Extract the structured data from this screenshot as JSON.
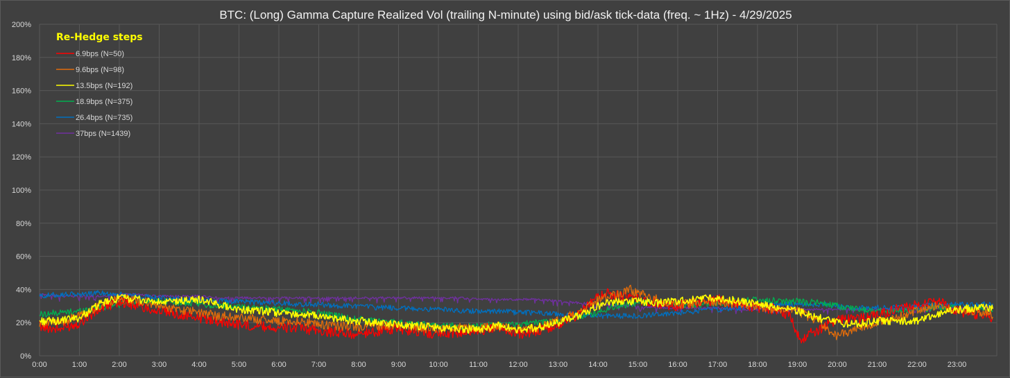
{
  "chart_data": {
    "type": "line",
    "title": "BTC: (Long) Gamma Capture Realized Vol (trailing N-minute) using bid/ask tick-data (freq. ~ 1Hz) - 4/29/2025",
    "xlabel": "",
    "ylabel": "",
    "x_unit": "hour of day",
    "xlim": [
      0,
      24
    ],
    "ylim": [
      0,
      200
    ],
    "y_tick_values": [
      0,
      20,
      40,
      60,
      80,
      100,
      120,
      140,
      160,
      180,
      200
    ],
    "y_tick_labels": [
      "0%",
      "20%",
      "40%",
      "60%",
      "80%",
      "100%",
      "120%",
      "140%",
      "160%",
      "180%",
      "200%"
    ],
    "x_tick_values": [
      0,
      1,
      2,
      3,
      4,
      5,
      6,
      7,
      8,
      9,
      10,
      11,
      12,
      13,
      14,
      15,
      16,
      17,
      18,
      19,
      20,
      21,
      22,
      23
    ],
    "x_tick_labels": [
      "0:00",
      "1:00",
      "2:00",
      "3:00",
      "4:00",
      "5:00",
      "6:00",
      "7:00",
      "8:00",
      "9:00",
      "10:00",
      "11:00",
      "12:00",
      "13:00",
      "14:00",
      "15:00",
      "16:00",
      "17:00",
      "18:00",
      "19:00",
      "20:00",
      "21:00",
      "22:00",
      "23:00"
    ],
    "grid": true,
    "legend_title": "Re-Hedge steps",
    "legend_position": "top-left",
    "series": [
      {
        "name": "6.9bps  (N=50)",
        "color": "#ff0000",
        "x": [
          0,
          0.5,
          1,
          1.5,
          2,
          2.5,
          3,
          3.5,
          4,
          4.5,
          5,
          5.5,
          6,
          6.5,
          7,
          7.5,
          8,
          8.5,
          9,
          9.5,
          10,
          10.5,
          11,
          11.5,
          12,
          12.5,
          13,
          13.5,
          14,
          14.25,
          14.5,
          15,
          15.5,
          16,
          16.5,
          17,
          17.5,
          18,
          18.5,
          18.8,
          19,
          19.1,
          19.25,
          19.5,
          19.75,
          20,
          20.5,
          21,
          21.5,
          22,
          22.5,
          23,
          23.5,
          23.9
        ],
        "y": [
          18,
          16,
          20,
          28,
          33,
          30,
          27,
          25,
          23,
          21,
          19,
          18,
          17,
          17,
          15,
          14,
          13,
          15,
          16,
          15,
          13,
          14,
          15,
          18,
          13,
          15,
          19,
          25,
          35,
          38,
          36,
          34,
          32,
          30,
          32,
          34,
          31,
          29,
          28,
          24,
          14,
          7,
          13,
          15,
          19,
          22,
          22,
          25,
          28,
          31,
          33,
          27,
          25,
          23
        ]
      },
      {
        "name": "9.6bps  (N=98)",
        "color": "#e36c0a",
        "x": [
          0,
          0.5,
          1,
          1.5,
          2,
          2.5,
          3,
          3.5,
          4,
          4.5,
          5,
          5.5,
          6,
          6.5,
          7,
          7.5,
          8,
          8.5,
          9,
          9.5,
          10,
          10.5,
          11,
          11.5,
          12,
          12.5,
          13,
          13.5,
          14,
          14.5,
          14.8,
          15,
          15.5,
          16,
          16.5,
          17,
          17.5,
          18,
          18.5,
          19,
          19.5,
          20,
          20.5,
          21,
          21.5,
          22,
          22.5,
          23,
          23.5,
          23.9
        ],
        "y": [
          20,
          20,
          24,
          30,
          35,
          33,
          30,
          28,
          26,
          24,
          23,
          22,
          21,
          21,
          19,
          18,
          17,
          18,
          18,
          17,
          16,
          17,
          16,
          18,
          16,
          17,
          21,
          26,
          34,
          37,
          40,
          38,
          34,
          31,
          32,
          33,
          31,
          30,
          28,
          27,
          21,
          12,
          17,
          20,
          23,
          27,
          30,
          28,
          27,
          25
        ]
      },
      {
        "name": "13.5bps  (N=192)",
        "color": "#ffff00",
        "x": [
          0,
          0.5,
          1,
          1.5,
          2,
          2.5,
          3,
          3.5,
          4,
          4.5,
          5,
          5.5,
          6,
          6.5,
          7,
          7.5,
          8,
          8.5,
          9,
          9.5,
          10,
          10.5,
          11,
          11.5,
          12,
          12.5,
          13,
          13.5,
          14,
          14.5,
          15,
          15.5,
          16,
          16.5,
          17,
          17.5,
          18,
          18.5,
          19,
          19.5,
          20,
          20.5,
          21,
          21.5,
          22,
          22.5,
          23,
          23.5,
          23.9
        ],
        "y": [
          21,
          21,
          23,
          31,
          35,
          34,
          32,
          33,
          34,
          31,
          28,
          27,
          26,
          25,
          24,
          22,
          21,
          20,
          19,
          18,
          17,
          16,
          16,
          18,
          16,
          17,
          20,
          24,
          30,
          33,
          33,
          32,
          33,
          34,
          35,
          33,
          31,
          29,
          27,
          23,
          20,
          19,
          21,
          21,
          21,
          25,
          28,
          29,
          29
        ]
      },
      {
        "name": "18.9bps  (N=375)",
        "color": "#00b050",
        "x": [
          0,
          0.5,
          1,
          1.5,
          2,
          2.5,
          3,
          3.5,
          4,
          4.5,
          5,
          5.5,
          6,
          6.5,
          7,
          7.5,
          8,
          8.5,
          9,
          9.5,
          10,
          10.5,
          11,
          11.5,
          12,
          12.5,
          13,
          13.5,
          14,
          14.5,
          15,
          15.5,
          16,
          16.5,
          17,
          17.5,
          18,
          18.5,
          19,
          19.5,
          20,
          20.5,
          21,
          21.5,
          22,
          22.5,
          23,
          23.5,
          23.9
        ],
        "y": [
          25,
          26,
          27,
          29,
          31,
          32,
          33,
          32,
          31,
          30,
          30,
          29,
          28,
          27,
          26,
          24,
          22,
          21,
          20,
          19,
          18,
          18,
          18,
          19,
          19,
          20,
          21,
          23,
          26,
          30,
          32,
          32,
          31,
          31,
          32,
          33,
          34,
          33,
          33,
          32,
          30,
          28,
          27,
          27,
          28,
          29,
          29,
          28,
          28
        ]
      },
      {
        "name": "26.4bps  (N=735)",
        "color": "#0070c0",
        "x": [
          0,
          0.5,
          1,
          1.5,
          2,
          2.5,
          3,
          3.5,
          4,
          4.5,
          5,
          5.5,
          6,
          6.5,
          7,
          7.5,
          8,
          8.5,
          9,
          9.5,
          10,
          10.5,
          11,
          11.5,
          12,
          12.5,
          13,
          13.5,
          14,
          14.5,
          15,
          15.5,
          16,
          16.5,
          17,
          17.5,
          18,
          18.5,
          19,
          19.5,
          20,
          20.5,
          21,
          21.5,
          22,
          22.5,
          23,
          23.5,
          23.9
        ],
        "y": [
          36,
          37,
          37,
          38,
          37,
          36,
          35,
          34,
          34,
          33,
          33,
          32,
          32,
          31,
          31,
          30,
          30,
          29,
          29,
          28,
          28,
          27,
          27,
          27,
          26,
          26,
          25,
          25,
          24,
          24,
          24,
          25,
          26,
          27,
          28,
          29,
          30,
          31,
          31,
          31,
          30,
          29,
          29,
          29,
          30,
          31,
          31,
          31,
          31
        ]
      },
      {
        "name": "37bps  (N=1439)",
        "color": "#7030a0",
        "x": [
          0,
          0.5,
          1,
          1.5,
          2,
          2.5,
          3,
          3.5,
          4,
          4.5,
          5,
          5.5,
          6,
          6.5,
          7,
          7.5,
          8,
          8.5,
          9,
          9.5,
          10,
          10.5,
          11,
          11.5,
          12,
          12.5,
          13,
          13.5,
          14,
          14.5,
          15,
          15.5,
          16,
          16.5,
          17,
          17.5,
          18,
          18.5,
          19,
          19.5,
          20,
          20.5,
          21,
          21.5,
          22,
          22.5,
          23,
          23.5,
          23.9
        ],
        "y": [
          37,
          36,
          36,
          36,
          37,
          37,
          36,
          36,
          36,
          35,
          35,
          35,
          35,
          35,
          35,
          35,
          35,
          35,
          35,
          35,
          35,
          35,
          34,
          34,
          34,
          34,
          33,
          32,
          31,
          30,
          30,
          29,
          29,
          29,
          29,
          28,
          28,
          28,
          28,
          28,
          28,
          28,
          28,
          28,
          28,
          29,
          29,
          29,
          29
        ]
      }
    ]
  }
}
